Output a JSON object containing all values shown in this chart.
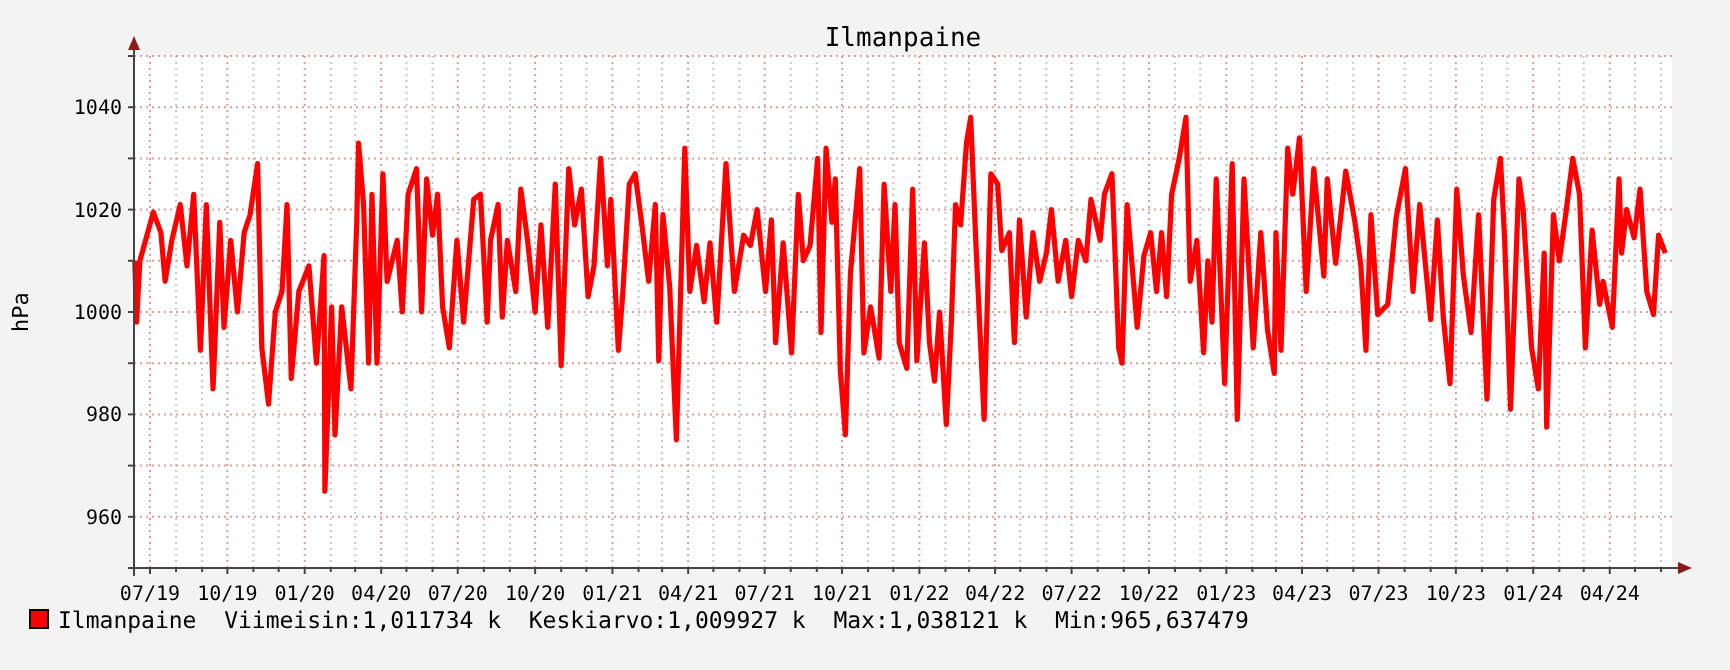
{
  "chart_data": {
    "type": "line",
    "title": "Ilmanpaine",
    "ylabel": "hPa",
    "xlim": [
      "2019-06-12",
      "2024-06-14"
    ],
    "ylim": [
      950,
      1050
    ],
    "yticks": [
      {
        "value": 950,
        "label": null
      },
      960,
      {
        "value": 970,
        "label": null
      },
      980,
      {
        "value": 990,
        "label": null
      },
      1000,
      {
        "value": 1010,
        "label": null
      },
      1020,
      {
        "value": 1030,
        "label": null
      },
      1040,
      {
        "value": 1050,
        "label": null
      }
    ],
    "xticks": [
      {
        "value": "2019-07-01",
        "label": "07/19"
      },
      {
        "value": "2019-08-01",
        "label": null
      },
      {
        "value": "2019-09-01",
        "label": null
      },
      {
        "value": "2019-10-01",
        "label": "10/19"
      },
      {
        "value": "2019-11-01",
        "label": null
      },
      {
        "value": "2019-12-01",
        "label": null
      },
      {
        "value": "2020-01-01",
        "label": "01/20"
      },
      {
        "value": "2020-02-01",
        "label": null
      },
      {
        "value": "2020-03-01",
        "label": null
      },
      {
        "value": "2020-04-01",
        "label": "04/20"
      },
      {
        "value": "2020-05-01",
        "label": null
      },
      {
        "value": "2020-06-01",
        "label": null
      },
      {
        "value": "2020-07-01",
        "label": "07/20"
      },
      {
        "value": "2020-08-01",
        "label": null
      },
      {
        "value": "2020-09-01",
        "label": null
      },
      {
        "value": "2020-10-01",
        "label": "10/20"
      },
      {
        "value": "2020-11-01",
        "label": null
      },
      {
        "value": "2020-12-01",
        "label": null
      },
      {
        "value": "2021-01-01",
        "label": "01/21"
      },
      {
        "value": "2021-02-01",
        "label": null
      },
      {
        "value": "2021-03-01",
        "label": null
      },
      {
        "value": "2021-04-01",
        "label": "04/21"
      },
      {
        "value": "2021-05-01",
        "label": null
      },
      {
        "value": "2021-06-01",
        "label": null
      },
      {
        "value": "2021-07-01",
        "label": "07/21"
      },
      {
        "value": "2021-08-01",
        "label": null
      },
      {
        "value": "2021-09-01",
        "label": null
      },
      {
        "value": "2021-10-01",
        "label": "10/21"
      },
      {
        "value": "2021-11-01",
        "label": null
      },
      {
        "value": "2021-12-01",
        "label": null
      },
      {
        "value": "2022-01-01",
        "label": "01/22"
      },
      {
        "value": "2022-02-01",
        "label": null
      },
      {
        "value": "2022-03-01",
        "label": null
      },
      {
        "value": "2022-04-01",
        "label": "04/22"
      },
      {
        "value": "2022-05-01",
        "label": null
      },
      {
        "value": "2022-06-01",
        "label": null
      },
      {
        "value": "2022-07-01",
        "label": "07/22"
      },
      {
        "value": "2022-08-01",
        "label": null
      },
      {
        "value": "2022-09-01",
        "label": null
      },
      {
        "value": "2022-10-01",
        "label": "10/22"
      },
      {
        "value": "2022-11-01",
        "label": null
      },
      {
        "value": "2022-12-01",
        "label": null
      },
      {
        "value": "2023-01-01",
        "label": "01/23"
      },
      {
        "value": "2023-02-01",
        "label": null
      },
      {
        "value": "2023-03-01",
        "label": null
      },
      {
        "value": "2023-04-01",
        "label": "04/23"
      },
      {
        "value": "2023-05-01",
        "label": null
      },
      {
        "value": "2023-06-01",
        "label": null
      },
      {
        "value": "2023-07-01",
        "label": "07/23"
      },
      {
        "value": "2023-08-01",
        "label": null
      },
      {
        "value": "2023-09-01",
        "label": null
      },
      {
        "value": "2023-10-01",
        "label": "10/23"
      },
      {
        "value": "2023-11-01",
        "label": null
      },
      {
        "value": "2023-12-01",
        "label": null
      },
      {
        "value": "2024-01-01",
        "label": "01/24"
      },
      {
        "value": "2024-02-01",
        "label": null
      },
      {
        "value": "2024-03-01",
        "label": null
      },
      {
        "value": "2024-04-01",
        "label": "04/24"
      },
      {
        "value": "2024-05-01",
        "label": null
      },
      {
        "value": "2024-06-01",
        "label": null
      }
    ],
    "grid": true,
    "legend": "bottom left",
    "line_style": "solid",
    "annotations": [
      "Viimeisin:1,011734 k",
      "Keskiarvo:1,009927 k",
      "Max:1,038121 k",
      "Min:965,637479"
    ],
    "series": [
      {
        "name": "Ilmanpaine",
        "color": "#ff0000",
        "x": [
          "2019-06-13",
          "2019-06-15",
          "2019-06-19",
          "2019-07-05",
          "2019-07-14",
          "2019-07-19",
          "2019-07-27",
          "2019-08-06",
          "2019-08-14",
          "2019-08-22",
          "2019-08-30",
          "2019-09-06",
          "2019-09-14",
          "2019-09-22",
          "2019-09-27",
          "2019-10-05",
          "2019-10-13",
          "2019-10-21",
          "2019-10-28",
          "2019-11-06",
          "2019-11-11",
          "2019-11-19",
          "2019-11-27",
          "2019-12-05",
          "2019-12-11",
          "2019-12-16",
          "2019-12-25",
          "2020-01-06",
          "2020-01-15",
          "2020-01-24",
          "2020-01-25",
          "2020-02-02",
          "2020-02-06",
          "2020-02-14",
          "2020-02-25",
          "2020-03-03",
          "2020-03-05",
          "2020-03-11",
          "2020-03-17",
          "2020-03-21",
          "2020-03-27",
          "2020-04-03",
          "2020-04-08",
          "2020-04-20",
          "2020-04-26",
          "2020-05-03",
          "2020-05-13",
          "2020-05-19",
          "2020-05-25",
          "2020-06-01",
          "2020-06-07",
          "2020-06-13",
          "2020-06-21",
          "2020-06-30",
          "2020-07-08",
          "2020-07-20",
          "2020-07-28",
          "2020-08-05",
          "2020-08-09",
          "2020-08-18",
          "2020-08-23",
          "2020-08-29",
          "2020-09-08",
          "2020-09-14",
          "2020-09-22",
          "2020-10-01",
          "2020-10-08",
          "2020-10-16",
          "2020-10-25",
          "2020-11-01",
          "2020-11-10",
          "2020-11-17",
          "2020-11-25",
          "2020-12-03",
          "2020-12-10",
          "2020-12-18",
          "2020-12-26",
          "2020-12-30",
          "2021-01-08",
          "2021-01-13",
          "2021-01-21",
          "2021-01-28",
          "2021-02-05",
          "2021-02-13",
          "2021-02-21",
          "2021-02-25",
          "2021-03-02",
          "2021-03-10",
          "2021-03-18",
          "2021-03-28",
          "2021-04-03",
          "2021-04-11",
          "2021-04-20",
          "2021-04-27",
          "2021-05-05",
          "2021-05-16",
          "2021-05-26",
          "2021-06-06",
          "2021-06-14",
          "2021-06-22",
          "2021-07-02",
          "2021-07-09",
          "2021-07-14",
          "2021-07-23",
          "2021-08-02",
          "2021-08-10",
          "2021-08-16",
          "2021-08-24",
          "2021-09-02",
          "2021-09-06",
          "2021-09-12",
          "2021-09-19",
          "2021-09-23",
          "2021-09-29",
          "2021-10-05",
          "2021-10-11",
          "2021-10-22",
          "2021-10-27",
          "2021-11-04",
          "2021-11-14",
          "2021-11-20",
          "2021-11-28",
          "2021-12-03",
          "2021-12-08",
          "2021-12-17",
          "2021-12-24",
          "2021-12-29",
          "2022-01-07",
          "2022-01-13",
          "2022-01-19",
          "2022-01-25",
          "2022-02-02",
          "2022-02-08",
          "2022-02-13",
          "2022-02-19",
          "2022-02-26",
          "2022-03-03",
          "2022-03-09",
          "2022-03-19",
          "2022-03-27",
          "2022-04-04",
          "2022-04-09",
          "2022-04-18",
          "2022-04-24",
          "2022-04-30",
          "2022-05-08",
          "2022-05-16",
          "2022-05-24",
          "2022-06-01",
          "2022-06-07",
          "2022-06-15",
          "2022-06-24",
          "2022-07-01",
          "2022-07-09",
          "2022-07-18",
          "2022-07-24",
          "2022-08-04",
          "2022-08-09",
          "2022-08-18",
          "2022-08-26",
          "2022-08-30",
          "2022-09-05",
          "2022-09-17",
          "2022-09-25",
          "2022-10-03",
          "2022-10-10",
          "2022-10-16",
          "2022-10-22",
          "2022-10-28",
          "2022-11-06",
          "2022-11-14",
          "2022-11-19",
          "2022-11-27",
          "2022-12-05",
          "2022-12-10",
          "2022-12-15",
          "2022-12-20",
          "2022-12-30",
          "2023-01-08",
          "2023-01-14",
          "2023-01-22",
          "2023-02-02",
          "2023-02-11",
          "2023-02-19",
          "2023-02-27",
          "2023-03-01",
          "2023-03-07",
          "2023-03-15",
          "2023-03-21",
          "2023-03-29",
          "2023-04-06",
          "2023-04-15",
          "2023-04-27",
          "2023-05-01",
          "2023-05-11",
          "2023-05-23",
          "2023-06-03",
          "2023-06-10",
          "2023-06-16",
          "2023-06-22",
          "2023-06-30",
          "2023-07-12",
          "2023-07-22",
          "2023-08-02",
          "2023-08-11",
          "2023-08-19",
          "2023-09-01",
          "2023-09-09",
          "2023-09-16",
          "2023-09-24",
          "2023-10-02",
          "2023-10-10",
          "2023-10-19",
          "2023-10-28",
          "2023-11-07",
          "2023-11-15",
          "2023-11-23",
          "2023-11-28",
          "2023-12-05",
          "2023-12-15",
          "2023-12-20",
          "2023-12-30",
          "2024-01-07",
          "2024-01-14",
          "2024-01-17",
          "2024-01-25",
          "2024-02-01",
          "2024-02-09",
          "2024-02-17",
          "2024-02-25",
          "2024-03-03",
          "2024-03-11",
          "2024-03-20",
          "2024-03-24",
          "2024-04-04",
          "2024-04-12",
          "2024-04-15",
          "2024-04-21",
          "2024-04-30",
          "2024-05-07",
          "2024-05-15",
          "2024-05-23",
          "2024-05-29",
          "2024-06-06"
        ],
        "values": [
          1010,
          998,
          1010,
          1019.5,
          1015.5,
          1006,
          1014,
          1021,
          1009,
          1023,
          992.5,
          1021,
          985,
          1017.5,
          997,
          1014,
          1000,
          1015.5,
          1019,
          1029,
          993,
          982,
          1000,
          1004,
          1021,
          987,
          1004,
          1009,
          990,
          1011,
          965,
          1001,
          976,
          1001,
          985,
          1018,
          1033,
          1021,
          990,
          1023,
          990,
          1027,
          1006,
          1014,
          1000,
          1023,
          1028,
          1000,
          1026,
          1015,
          1023,
          1001,
          993,
          1014,
          998,
          1022,
          1023,
          998,
          1014,
          1021,
          999,
          1014,
          1004,
          1024,
          1014,
          1000,
          1017,
          997,
          1025,
          989.5,
          1028,
          1017,
          1024,
          1003,
          1009,
          1030,
          1009,
          1022,
          992.5,
          1003,
          1025,
          1027,
          1017,
          1006,
          1021,
          990.5,
          1019,
          1005,
          975,
          1032,
          1004,
          1013,
          1002,
          1013.5,
          998,
          1029,
          1004,
          1015,
          1013,
          1020,
          1004,
          1018,
          994,
          1013.5,
          992,
          1023,
          1010,
          1013,
          1030,
          996,
          1032,
          1017.5,
          1026,
          988.5,
          976,
          1007.5,
          1028,
          992,
          1001,
          991,
          1025,
          1004,
          1021,
          994,
          989,
          1024,
          990.5,
          1013.5,
          994,
          986.5,
          1000,
          978,
          998,
          1021,
          1017,
          1033,
          1038,
          1014,
          979,
          1027,
          1025,
          1012,
          1015.5,
          994,
          1018,
          999,
          1015.5,
          1006,
          1011.5,
          1020,
          1006,
          1014,
          1003,
          1014,
          1010,
          1022,
          1014,
          1023,
          1027,
          993,
          990,
          1021,
          997,
          1011,
          1015.5,
          1004,
          1015.5,
          1003,
          1023,
          1030,
          1038,
          1006,
          1014,
          992,
          1010,
          998,
          1026,
          986,
          1029,
          979,
          1026,
          993,
          1015.5,
          996.5,
          988,
          1015.5,
          992.5,
          1032,
          1023,
          1034,
          1004,
          1028,
          1007,
          1026,
          1009.5,
          1027.5,
          1017.5,
          1009,
          992.5,
          1019,
          999.5,
          1001.5,
          1018.5,
          1028,
          1004,
          1021,
          998.5,
          1018,
          999,
          986,
          1024,
          1007,
          996,
          1019,
          983,
          1022,
          1030,
          1014,
          981,
          1026,
          1020,
          993,
          985,
          1011.5,
          977.5,
          1019,
          1010,
          1019.5,
          1030,
          1023,
          993,
          1016,
          1001.5,
          1006,
          997,
          1026,
          1011.5,
          1020,
          1014.5,
          1024,
          1004,
          999.5,
          1015,
          1011.5
        ]
      }
    ]
  }
}
